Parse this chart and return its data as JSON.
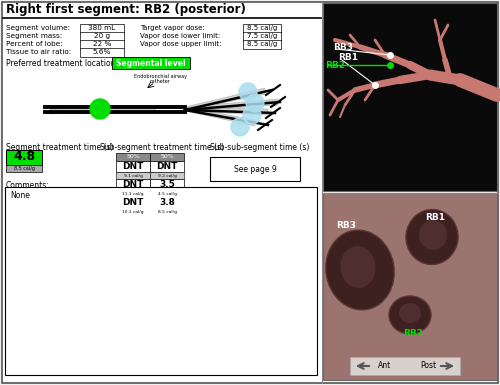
{
  "title": "Right first segment: RB2 (posterior)",
  "bg_color": "#f0f0f0",
  "left_table": {
    "labels": [
      "Segment volume:",
      "Segment mass:",
      "Percent of lobe:",
      "Tissue to air ratio:"
    ],
    "values": [
      "380 mL",
      "20 g",
      "22 %",
      "5.6%"
    ]
  },
  "right_table": {
    "labels": [
      "Target vapor dose:",
      "Vapor dose lower limit:",
      "Vapor dose upper limit:"
    ],
    "values": [
      "8.5 cal/g",
      "7.5 cal/g",
      "8.5 cal/g"
    ]
  },
  "preferred_treatment": "Segmental level",
  "segment_treatment_time": "4.8",
  "segment_treatment_dose": "8.5 cal/g",
  "sub_segment_table": {
    "col1_header": "50%",
    "col2_header": "50%",
    "rows": [
      [
        "DNT",
        "DNT"
      ],
      [
        "DNT",
        "3.5"
      ],
      [
        "DNT",
        "3.8"
      ]
    ],
    "row_sub": [
      [
        "9.1 cal/g",
        "9.2 cal/g"
      ],
      [
        "11.1 cal/g",
        "4.5 cal/g"
      ],
      [
        "10.1 cal/g",
        "8.5 cal/g"
      ]
    ]
  },
  "comments_label": "Comments:",
  "comments_text": "None",
  "green_color": "#00dd00",
  "light_blue": "#aaddee",
  "image1_bg": "#0a0a0a",
  "image2_bg": "#9b7470",
  "image2_dark": "#5a3530",
  "tree_color": "#c87870",
  "ant_post_bg": "#d8d0cc"
}
